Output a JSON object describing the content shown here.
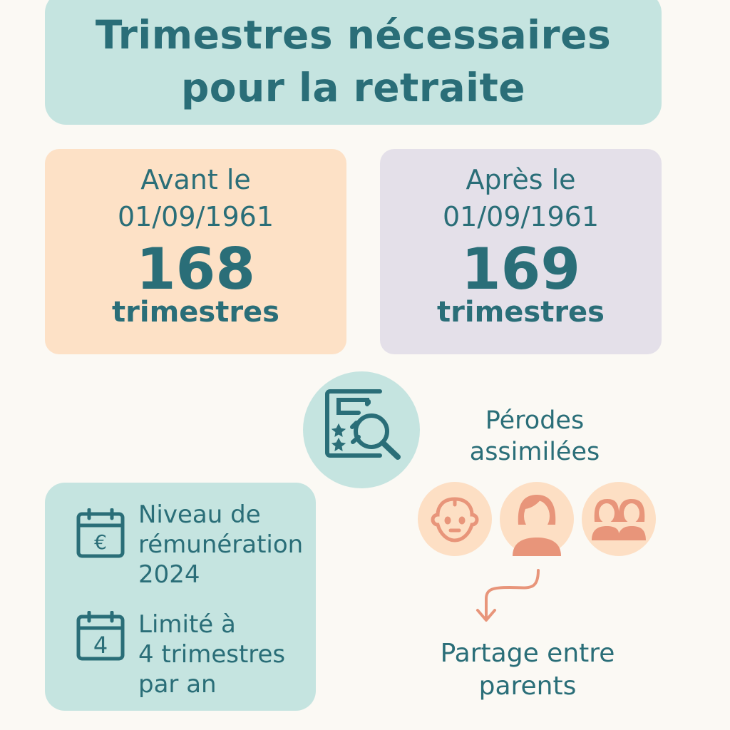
{
  "title": {
    "line1": "Trimestres nécessaires",
    "line2": "pour la retraite"
  },
  "cards": [
    {
      "line1": "Avant le",
      "line2": "01/09/1961",
      "number": "168",
      "unit": "trimestres",
      "color": "#fde1c6"
    },
    {
      "line1": "Après le",
      "line2": "01/09/1961",
      "number": "169",
      "unit": "trimestres",
      "color": "#e4e0e9"
    }
  ],
  "periods": {
    "line1": "Pérodes",
    "line2": "assimilées",
    "icon": "document-search-icon"
  },
  "avatars": [
    "baby-icon",
    "woman-icon",
    "two-women-icon"
  ],
  "share": {
    "line1": "Partage entre",
    "line2": "parents"
  },
  "info": [
    {
      "icon": "calendar-euro-icon",
      "lines": [
        "Niveau de",
        "rémunération",
        "2024"
      ]
    },
    {
      "icon": "calendar-4-icon",
      "icon_text": "4",
      "lines": [
        "Limité à",
        "4 trimestres",
        "par an"
      ]
    }
  ],
  "colors": {
    "teal": "#2a6e78",
    "teal_bg": "#c5e4e0",
    "orange": "#e8957a",
    "orange_bg": "#fddfc4",
    "background": "#fbf9f4"
  }
}
